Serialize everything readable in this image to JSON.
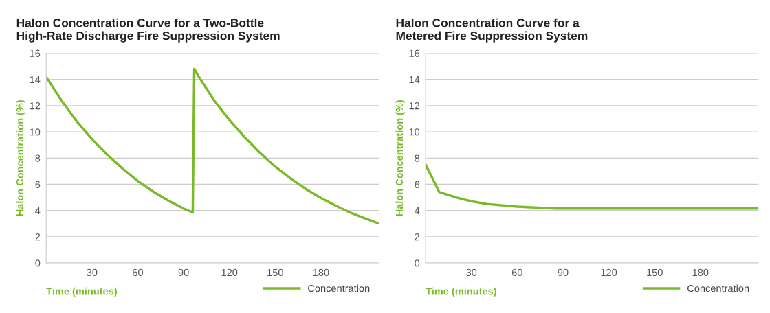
{
  "chart_data": [
    {
      "type": "line",
      "title": "Halon Concentration Curve for a Two-Bottle\nHigh-Rate Discharge Fire Suppression System",
      "xlabel": "Time (minutes)",
      "ylabel": "Halon Concentration (%)",
      "x": [
        0,
        10,
        20,
        30,
        40,
        50,
        60,
        70,
        80,
        90,
        96,
        97,
        100,
        110,
        120,
        130,
        140,
        150,
        160,
        170,
        180,
        190,
        200,
        210,
        218
      ],
      "series": [
        {
          "name": "Concentration",
          "color": "#7ab929",
          "values": [
            14.2,
            12.4,
            10.8,
            9.45,
            8.25,
            7.2,
            6.25,
            5.45,
            4.75,
            4.15,
            3.85,
            14.8,
            14.2,
            12.4,
            10.9,
            9.6,
            8.4,
            7.35,
            6.45,
            5.65,
            4.95,
            4.35,
            3.8,
            3.35,
            3.0
          ]
        }
      ],
      "xlim": [
        0,
        218
      ],
      "xticks": [
        30,
        60,
        90,
        120,
        150,
        180
      ],
      "ylim": [
        0,
        16
      ],
      "yticks": [
        0,
        2,
        4,
        6,
        8,
        10,
        12,
        14,
        16
      ],
      "grid": "y",
      "legend": "bottom right",
      "marker": "none",
      "line_style": "solid"
    },
    {
      "type": "line",
      "title": "Halon Concentration Curve for a\nMetered Fire Suppression System",
      "xlabel": "Time (minutes)",
      "ylabel": "Halon Concentration (%)",
      "x": [
        0,
        9,
        20,
        30,
        40,
        60,
        85,
        218
      ],
      "series": [
        {
          "name": "Concentration",
          "color": "#7ab929",
          "values": [
            7.5,
            5.4,
            5.0,
            4.7,
            4.5,
            4.3,
            4.15,
            4.15
          ]
        }
      ],
      "xlim": [
        0,
        218
      ],
      "xticks": [
        30,
        60,
        90,
        120,
        150,
        180
      ],
      "ylim": [
        0,
        16
      ],
      "yticks": [
        0,
        2,
        4,
        6,
        8,
        10,
        12,
        14,
        16
      ],
      "grid": "y",
      "legend": "bottom right",
      "marker": "none",
      "line_style": "solid"
    }
  ]
}
